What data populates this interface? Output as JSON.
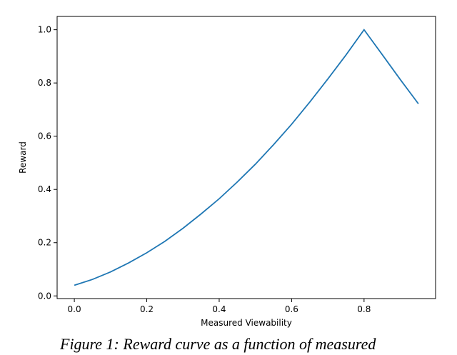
{
  "chart_data": {
    "type": "line",
    "title": "",
    "xlabel": "Measured Viewability",
    "ylabel": "Reward",
    "xlim": [
      -0.0475,
      0.9975
    ],
    "ylim": [
      -0.01,
      1.05
    ],
    "xticks": [
      0.0,
      0.2,
      0.4,
      0.6,
      0.8
    ],
    "xtick_labels": [
      "0.0",
      "0.2",
      "0.4",
      "0.6",
      "0.8"
    ],
    "yticks": [
      0.0,
      0.2,
      0.4,
      0.6,
      0.8,
      1.0
    ],
    "ytick_labels": [
      "0.0",
      "0.2",
      "0.4",
      "0.6",
      "0.8",
      "1.0"
    ],
    "grid": false,
    "series": [
      {
        "color": "#1f77b4",
        "x": [
          0.0,
          0.05,
          0.1,
          0.15,
          0.2,
          0.25,
          0.3,
          0.35,
          0.4,
          0.45,
          0.5,
          0.55,
          0.6,
          0.65,
          0.7,
          0.75,
          0.8,
          0.85,
          0.9,
          0.95
        ],
        "y": [
          0.04,
          0.062,
          0.09,
          0.124,
          0.162,
          0.205,
          0.254,
          0.308,
          0.365,
          0.428,
          0.495,
          0.568,
          0.645,
          0.728,
          0.815,
          0.905,
          1.0,
          0.907,
          0.813,
          0.722
        ]
      }
    ]
  },
  "caption": {
    "text": "Figure 1: Reward curve as a function of measured"
  }
}
